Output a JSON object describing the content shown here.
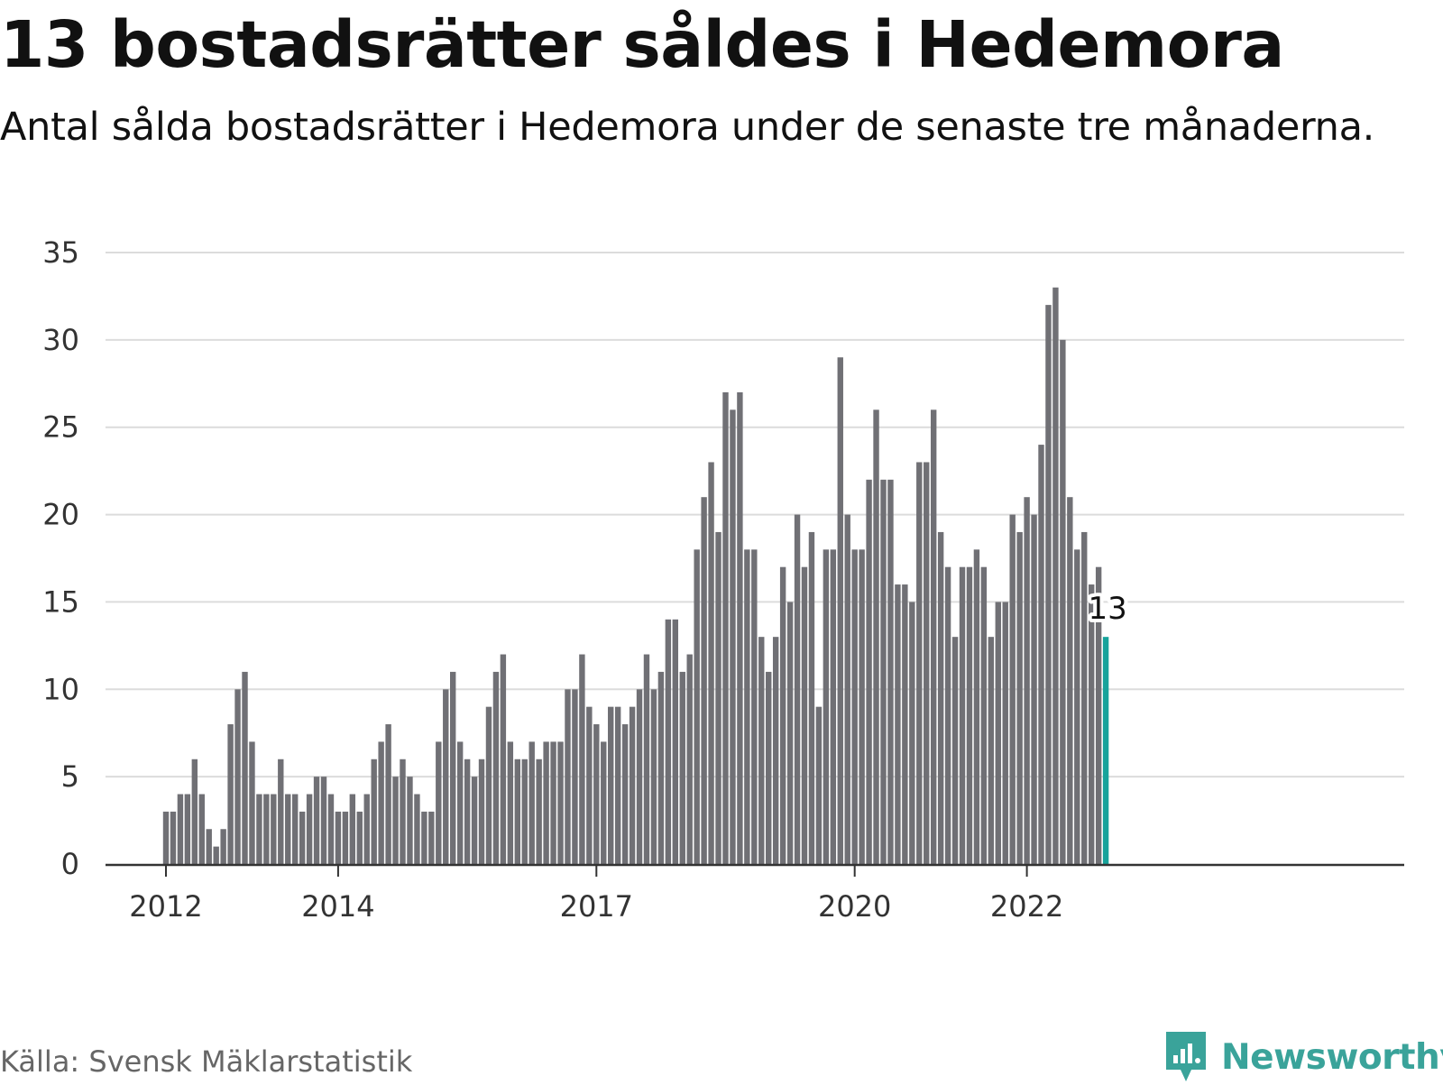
{
  "title": "13 bostadsrätter såldes i Hedemora",
  "subtitle": "Antal sålda bostadsrätter i Hedemora under de senaste tre månaderna.",
  "source": "Källa: Svensk Mäklarstatistik",
  "brand": {
    "name": "Newsworthy",
    "icon": "newsworthy-logo-icon",
    "color": "#3aa39a"
  },
  "chart_data": {
    "type": "bar",
    "x_start": "2012-01",
    "interval": "month",
    "x_ticks": [
      "2012",
      "2014",
      "2017",
      "2020",
      "2022"
    ],
    "y_ticks": [
      "0",
      "5",
      "10",
      "15",
      "20",
      "25",
      "30",
      "35"
    ],
    "ylim": [
      0,
      35
    ],
    "grid": true,
    "bar_color": "#707075",
    "highlight_color": "#17a39b",
    "highlight_label": "13",
    "values": [
      3,
      3,
      4,
      4,
      6,
      4,
      2,
      1,
      2,
      8,
      10,
      11,
      7,
      4,
      4,
      4,
      6,
      4,
      4,
      3,
      4,
      5,
      5,
      4,
      3,
      3,
      4,
      3,
      4,
      6,
      7,
      8,
      5,
      6,
      5,
      4,
      3,
      3,
      7,
      10,
      11,
      7,
      6,
      5,
      6,
      9,
      11,
      12,
      7,
      6,
      6,
      7,
      6,
      7,
      7,
      7,
      10,
      10,
      12,
      9,
      8,
      7,
      9,
      9,
      8,
      9,
      10,
      12,
      10,
      11,
      14,
      14,
      11,
      12,
      18,
      21,
      23,
      19,
      27,
      26,
      27,
      18,
      18,
      13,
      11,
      13,
      17,
      15,
      20,
      17,
      19,
      9,
      18,
      18,
      29,
      20,
      18,
      18,
      22,
      26,
      22,
      22,
      16,
      16,
      15,
      23,
      23,
      26,
      19,
      17,
      13,
      17,
      17,
      18,
      17,
      13,
      15,
      15,
      20,
      19,
      21,
      20,
      24,
      32,
      33,
      30,
      21,
      18,
      19,
      16,
      17,
      13
    ]
  }
}
